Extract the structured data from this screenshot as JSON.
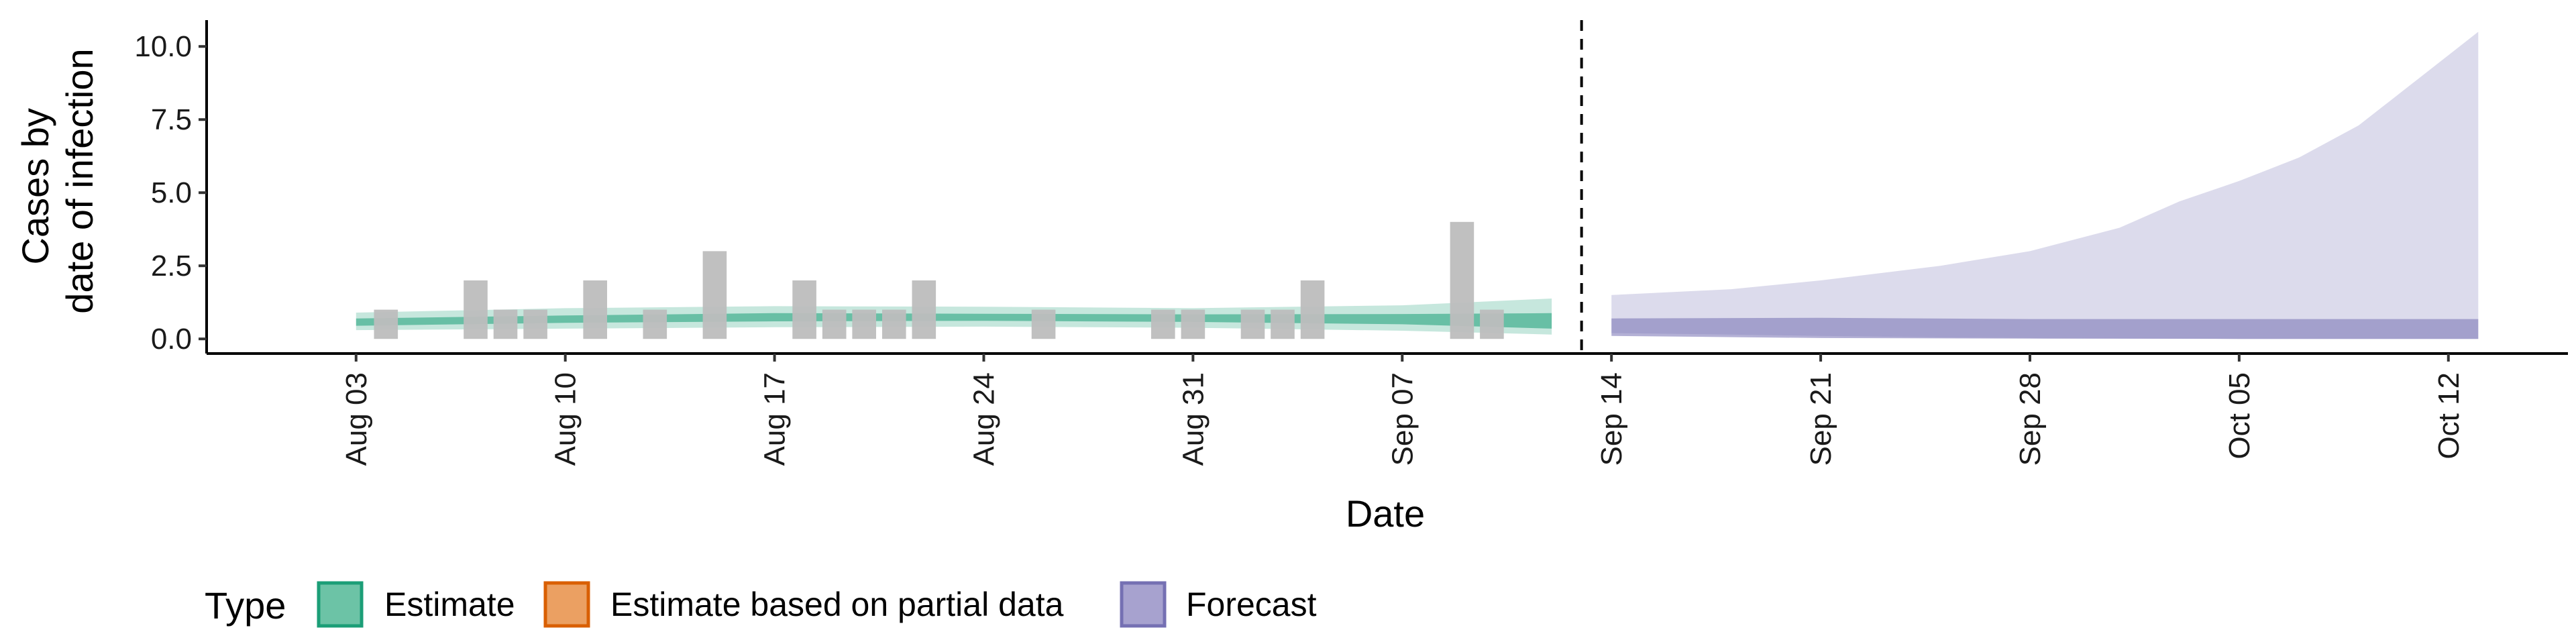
{
  "chart_data": {
    "type": "area",
    "xlabel": "Date",
    "ylabel_lines": [
      "Cases by",
      "date of infection"
    ],
    "ylim": [
      -0.5,
      10.9
    ],
    "xlim_dates": [
      "2020-07-29",
      "2020-10-16"
    ],
    "y_ticks": [
      {
        "value": 0,
        "label": "0.0"
      },
      {
        "value": 2.5,
        "label": "2.5"
      },
      {
        "value": 5,
        "label": "5.0"
      },
      {
        "value": 7.5,
        "label": "7.5"
      },
      {
        "value": 10,
        "label": "10.0"
      }
    ],
    "x_ticks": [
      {
        "date": "2020-08-03",
        "label": "Aug 03"
      },
      {
        "date": "2020-08-10",
        "label": "Aug 10"
      },
      {
        "date": "2020-08-17",
        "label": "Aug 17"
      },
      {
        "date": "2020-08-24",
        "label": "Aug 24"
      },
      {
        "date": "2020-08-31",
        "label": "Aug 31"
      },
      {
        "date": "2020-09-07",
        "label": "Sep 07"
      },
      {
        "date": "2020-09-14",
        "label": "Sep 14"
      },
      {
        "date": "2020-09-21",
        "label": "Sep 21"
      },
      {
        "date": "2020-09-28",
        "label": "Sep 28"
      },
      {
        "date": "2020-10-05",
        "label": "Oct 05"
      },
      {
        "date": "2020-10-12",
        "label": "Oct 12"
      }
    ],
    "forecast_divider_date": "2020-09-13",
    "grid": false,
    "legend_position": "bottom-left",
    "legend": {
      "title": "Type",
      "entries": [
        {
          "label": "Estimate",
          "fill": "#6cc3a6",
          "stroke": "#1b9e77"
        },
        {
          "label": "Estimate based on partial data",
          "fill": "#eba062",
          "stroke": "#d95f02"
        },
        {
          "label": "Forecast",
          "fill": "#a7a2cf",
          "stroke": "#7570b3"
        }
      ]
    },
    "observed_bar_color": "#bdbdbd",
    "observed_cases": [
      {
        "date": "2020-08-04",
        "value": 1
      },
      {
        "date": "2020-08-07",
        "value": 2
      },
      {
        "date": "2020-08-08",
        "value": 1
      },
      {
        "date": "2020-08-09",
        "value": 1
      },
      {
        "date": "2020-08-11",
        "value": 2
      },
      {
        "date": "2020-08-13",
        "value": 1
      },
      {
        "date": "2020-08-15",
        "value": 3
      },
      {
        "date": "2020-08-18",
        "value": 2
      },
      {
        "date": "2020-08-19",
        "value": 1
      },
      {
        "date": "2020-08-20",
        "value": 1
      },
      {
        "date": "2020-08-21",
        "value": 1
      },
      {
        "date": "2020-08-22",
        "value": 2
      },
      {
        "date": "2020-08-26",
        "value": 1
      },
      {
        "date": "2020-08-30",
        "value": 1
      },
      {
        "date": "2020-08-31",
        "value": 1
      },
      {
        "date": "2020-09-02",
        "value": 1
      },
      {
        "date": "2020-09-03",
        "value": 1
      },
      {
        "date": "2020-09-04",
        "value": 2
      },
      {
        "date": "2020-09-09",
        "value": 4
      },
      {
        "date": "2020-09-10",
        "value": 1
      }
    ],
    "series": [
      {
        "name": "Estimate",
        "color": "#1b9e77",
        "outer_band": [
          {
            "date": "2020-08-03",
            "lo": 0.3,
            "hi": 0.9
          },
          {
            "date": "2020-08-10",
            "lo": 0.35,
            "hi": 1.05
          },
          {
            "date": "2020-08-17",
            "lo": 0.4,
            "hi": 1.12
          },
          {
            "date": "2020-08-24",
            "lo": 0.42,
            "hi": 1.1
          },
          {
            "date": "2020-08-31",
            "lo": 0.38,
            "hi": 1.05
          },
          {
            "date": "2020-09-07",
            "lo": 0.28,
            "hi": 1.15
          },
          {
            "date": "2020-09-12",
            "lo": 0.15,
            "hi": 1.38
          }
        ],
        "inner_band": [
          {
            "date": "2020-08-03",
            "lo": 0.45,
            "hi": 0.7
          },
          {
            "date": "2020-08-10",
            "lo": 0.55,
            "hi": 0.8
          },
          {
            "date": "2020-08-17",
            "lo": 0.6,
            "hi": 0.88
          },
          {
            "date": "2020-08-24",
            "lo": 0.62,
            "hi": 0.86
          },
          {
            "date": "2020-08-31",
            "lo": 0.58,
            "hi": 0.84
          },
          {
            "date": "2020-09-07",
            "lo": 0.5,
            "hi": 0.85
          },
          {
            "date": "2020-09-12",
            "lo": 0.35,
            "hi": 0.88
          }
        ]
      },
      {
        "name": "Forecast",
        "color": "#7570b3",
        "outer_band": [
          {
            "date": "2020-09-14",
            "lo": 0.2,
            "hi": 1.5
          },
          {
            "date": "2020-09-18",
            "lo": 0.15,
            "hi": 1.7
          },
          {
            "date": "2020-09-21",
            "lo": 0.1,
            "hi": 2.0
          },
          {
            "date": "2020-09-25",
            "lo": 0.05,
            "hi": 2.5
          },
          {
            "date": "2020-09-28",
            "lo": 0.03,
            "hi": 3.0
          },
          {
            "date": "2020-10-01",
            "lo": 0.02,
            "hi": 3.8
          },
          {
            "date": "2020-10-03",
            "lo": 0.01,
            "hi": 4.7
          },
          {
            "date": "2020-10-05",
            "lo": 0.0,
            "hi": 5.4
          },
          {
            "date": "2020-10-07",
            "lo": 0.0,
            "hi": 6.2
          },
          {
            "date": "2020-10-09",
            "lo": 0.0,
            "hi": 7.3
          },
          {
            "date": "2020-10-11",
            "lo": 0.0,
            "hi": 8.9
          },
          {
            "date": "2020-10-13",
            "lo": 0.0,
            "hi": 10.5
          }
        ],
        "inner_band": [
          {
            "date": "2020-09-14",
            "lo": 0.1,
            "hi": 0.7
          },
          {
            "date": "2020-09-21",
            "lo": 0.03,
            "hi": 0.72
          },
          {
            "date": "2020-09-28",
            "lo": 0.01,
            "hi": 0.68
          },
          {
            "date": "2020-10-05",
            "lo": 0.0,
            "hi": 0.68
          },
          {
            "date": "2020-10-13",
            "lo": 0.0,
            "hi": 0.68
          }
        ]
      }
    ]
  }
}
